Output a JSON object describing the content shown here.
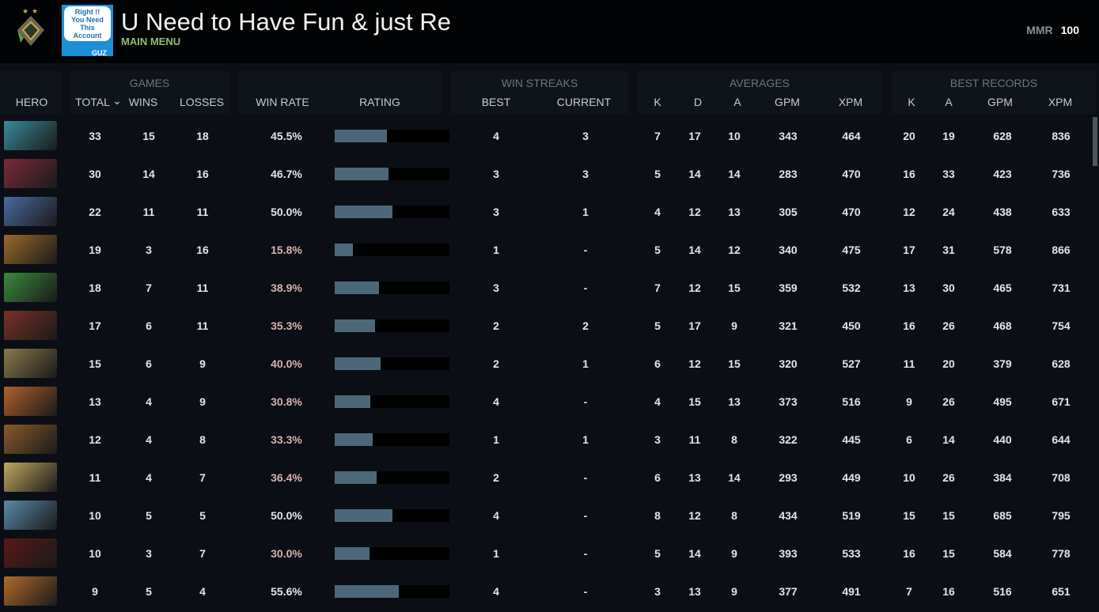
{
  "header": {
    "title": "U Need to Have Fun & just Re",
    "subtitle": "MAIN MENU",
    "avatar_text": [
      "Right !!",
      "You Need This",
      "Account",
      "GUZ"
    ],
    "mmr_label": "MMR",
    "mmr_value": "100"
  },
  "groups": {
    "games": "GAMES",
    "win_streaks": "WIN STREAKS",
    "averages": "AVERAGES",
    "best_records": "BEST RECORDS"
  },
  "columns": {
    "hero": "HERO",
    "total": "TOTAL",
    "sort_icon": "⌄",
    "wins": "WINS",
    "losses": "LOSSES",
    "win_rate": "WIN RATE",
    "rating": "RATING",
    "best": "BEST",
    "current": "CURRENT",
    "k": "K",
    "d": "D",
    "a": "A",
    "gpm": "GPM",
    "xpm": "XPM",
    "bk": "K",
    "ba": "A",
    "bgpm": "GPM",
    "bxpm": "XPM"
  },
  "colors": {
    "rating_fill": "#4c6878",
    "low_winrate": "#d7b3b0"
  },
  "rows": [
    {
      "hero_color": "#3a8a9a",
      "total": "33",
      "wins": "15",
      "losses": "18",
      "win_rate": "45.5%",
      "rating": 45.5,
      "best": "4",
      "current": "3",
      "k": "7",
      "d": "17",
      "a": "10",
      "gpm": "343",
      "xpm": "464",
      "bk": "20",
      "ba": "19",
      "bgpm": "628",
      "bxpm": "836",
      "low": false
    },
    {
      "hero_color": "#7a2a3a",
      "total": "30",
      "wins": "14",
      "losses": "16",
      "win_rate": "46.7%",
      "rating": 46.7,
      "best": "3",
      "current": "3",
      "k": "5",
      "d": "14",
      "a": "14",
      "gpm": "283",
      "xpm": "470",
      "bk": "16",
      "ba": "33",
      "bgpm": "423",
      "bxpm": "736",
      "low": false
    },
    {
      "hero_color": "#4a6aa0",
      "total": "22",
      "wins": "11",
      "losses": "11",
      "win_rate": "50.0%",
      "rating": 50,
      "best": "3",
      "current": "1",
      "k": "4",
      "d": "12",
      "a": "13",
      "gpm": "305",
      "xpm": "470",
      "bk": "12",
      "ba": "24",
      "bgpm": "438",
      "bxpm": "633",
      "low": false
    },
    {
      "hero_color": "#9a6a2a",
      "total": "19",
      "wins": "3",
      "losses": "16",
      "win_rate": "15.8%",
      "rating": 15.8,
      "best": "1",
      "current": "-",
      "k": "5",
      "d": "14",
      "a": "12",
      "gpm": "340",
      "xpm": "475",
      "bk": "17",
      "ba": "31",
      "bgpm": "578",
      "bxpm": "866",
      "low": true
    },
    {
      "hero_color": "#3a8a3a",
      "total": "18",
      "wins": "7",
      "losses": "11",
      "win_rate": "38.9%",
      "rating": 38.9,
      "best": "3",
      "current": "-",
      "k": "7",
      "d": "12",
      "a": "15",
      "gpm": "359",
      "xpm": "532",
      "bk": "13",
      "ba": "30",
      "bgpm": "465",
      "bxpm": "731",
      "low": true
    },
    {
      "hero_color": "#7a3028",
      "total": "17",
      "wins": "6",
      "losses": "11",
      "win_rate": "35.3%",
      "rating": 35.3,
      "best": "2",
      "current": "2",
      "k": "5",
      "d": "17",
      "a": "9",
      "gpm": "321",
      "xpm": "450",
      "bk": "16",
      "ba": "26",
      "bgpm": "468",
      "bxpm": "754",
      "low": true
    },
    {
      "hero_color": "#8a7a4a",
      "total": "15",
      "wins": "6",
      "losses": "9",
      "win_rate": "40.0%",
      "rating": 40,
      "best": "2",
      "current": "1",
      "k": "6",
      "d": "12",
      "a": "15",
      "gpm": "320",
      "xpm": "527",
      "bk": "11",
      "ba": "20",
      "bgpm": "379",
      "bxpm": "628",
      "low": true
    },
    {
      "hero_color": "#b0602a",
      "total": "13",
      "wins": "4",
      "losses": "9",
      "win_rate": "30.8%",
      "rating": 30.8,
      "best": "4",
      "current": "-",
      "k": "4",
      "d": "15",
      "a": "13",
      "gpm": "373",
      "xpm": "516",
      "bk": "9",
      "ba": "26",
      "bgpm": "495",
      "bxpm": "671",
      "low": true
    },
    {
      "hero_color": "#8a5a2a",
      "total": "12",
      "wins": "4",
      "losses": "8",
      "win_rate": "33.3%",
      "rating": 33.3,
      "best": "1",
      "current": "1",
      "k": "3",
      "d": "11",
      "a": "8",
      "gpm": "322",
      "xpm": "445",
      "bk": "6",
      "ba": "14",
      "bgpm": "440",
      "bxpm": "644",
      "low": true
    },
    {
      "hero_color": "#c0a860",
      "total": "11",
      "wins": "4",
      "losses": "7",
      "win_rate": "36.4%",
      "rating": 36.4,
      "best": "2",
      "current": "-",
      "k": "6",
      "d": "13",
      "a": "14",
      "gpm": "293",
      "xpm": "449",
      "bk": "10",
      "ba": "26",
      "bgpm": "384",
      "bxpm": "708",
      "low": true
    },
    {
      "hero_color": "#5a8aa8",
      "total": "10",
      "wins": "5",
      "losses": "5",
      "win_rate": "50.0%",
      "rating": 50,
      "best": "4",
      "current": "-",
      "k": "8",
      "d": "12",
      "a": "8",
      "gpm": "434",
      "xpm": "519",
      "bk": "15",
      "ba": "15",
      "bgpm": "685",
      "bxpm": "795",
      "low": false
    },
    {
      "hero_color": "#5a1818",
      "total": "10",
      "wins": "3",
      "losses": "7",
      "win_rate": "30.0%",
      "rating": 30,
      "best": "1",
      "current": "-",
      "k": "5",
      "d": "14",
      "a": "9",
      "gpm": "393",
      "xpm": "533",
      "bk": "16",
      "ba": "15",
      "bgpm": "584",
      "bxpm": "778",
      "low": true
    },
    {
      "hero_color": "#b06a2a",
      "total": "9",
      "wins": "5",
      "losses": "4",
      "win_rate": "55.6%",
      "rating": 55.6,
      "best": "4",
      "current": "-",
      "k": "3",
      "d": "13",
      "a": "9",
      "gpm": "377",
      "xpm": "491",
      "bk": "7",
      "ba": "16",
      "bgpm": "516",
      "bxpm": "651",
      "low": false
    }
  ]
}
